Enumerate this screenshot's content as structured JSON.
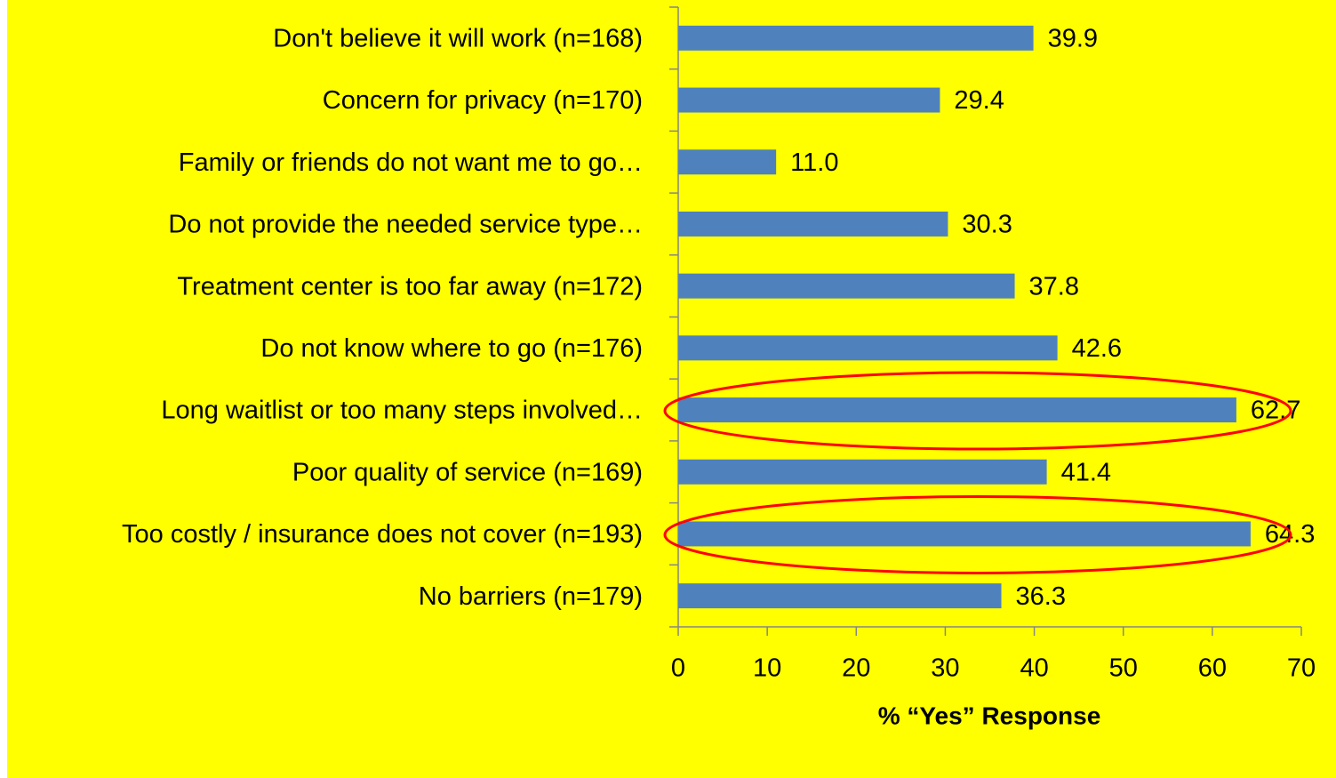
{
  "chart_data": {
    "type": "bar",
    "orientation": "horizontal",
    "categories": [
      "Don't believe it will work (n=168)",
      "Concern for privacy (n=170)",
      "Family or friends do not want me to go…",
      "Do not provide the needed service type…",
      "Treatment center is too far away (n=172)",
      "Do not know where to go (n=176)",
      "Long waitlist or too many steps involved…",
      "Poor quality of service (n=169)",
      "Too costly / insurance does not cover (n=193)",
      "No barriers (n=179)"
    ],
    "values": [
      39.9,
      29.4,
      11.0,
      30.3,
      37.8,
      42.6,
      62.7,
      41.4,
      64.3,
      36.3
    ],
    "value_labels": [
      "39.9",
      "29.4",
      "11.0",
      "30.3",
      "37.8",
      "42.6",
      "62.7",
      "41.4",
      "64.3",
      "36.3"
    ],
    "color": "#4f81bd",
    "xlabel": "% “Yes” Response",
    "xlim": [
      0,
      70
    ],
    "xticks": [
      0,
      10,
      20,
      30,
      40,
      50,
      60,
      70
    ],
    "grid": false
  }
}
